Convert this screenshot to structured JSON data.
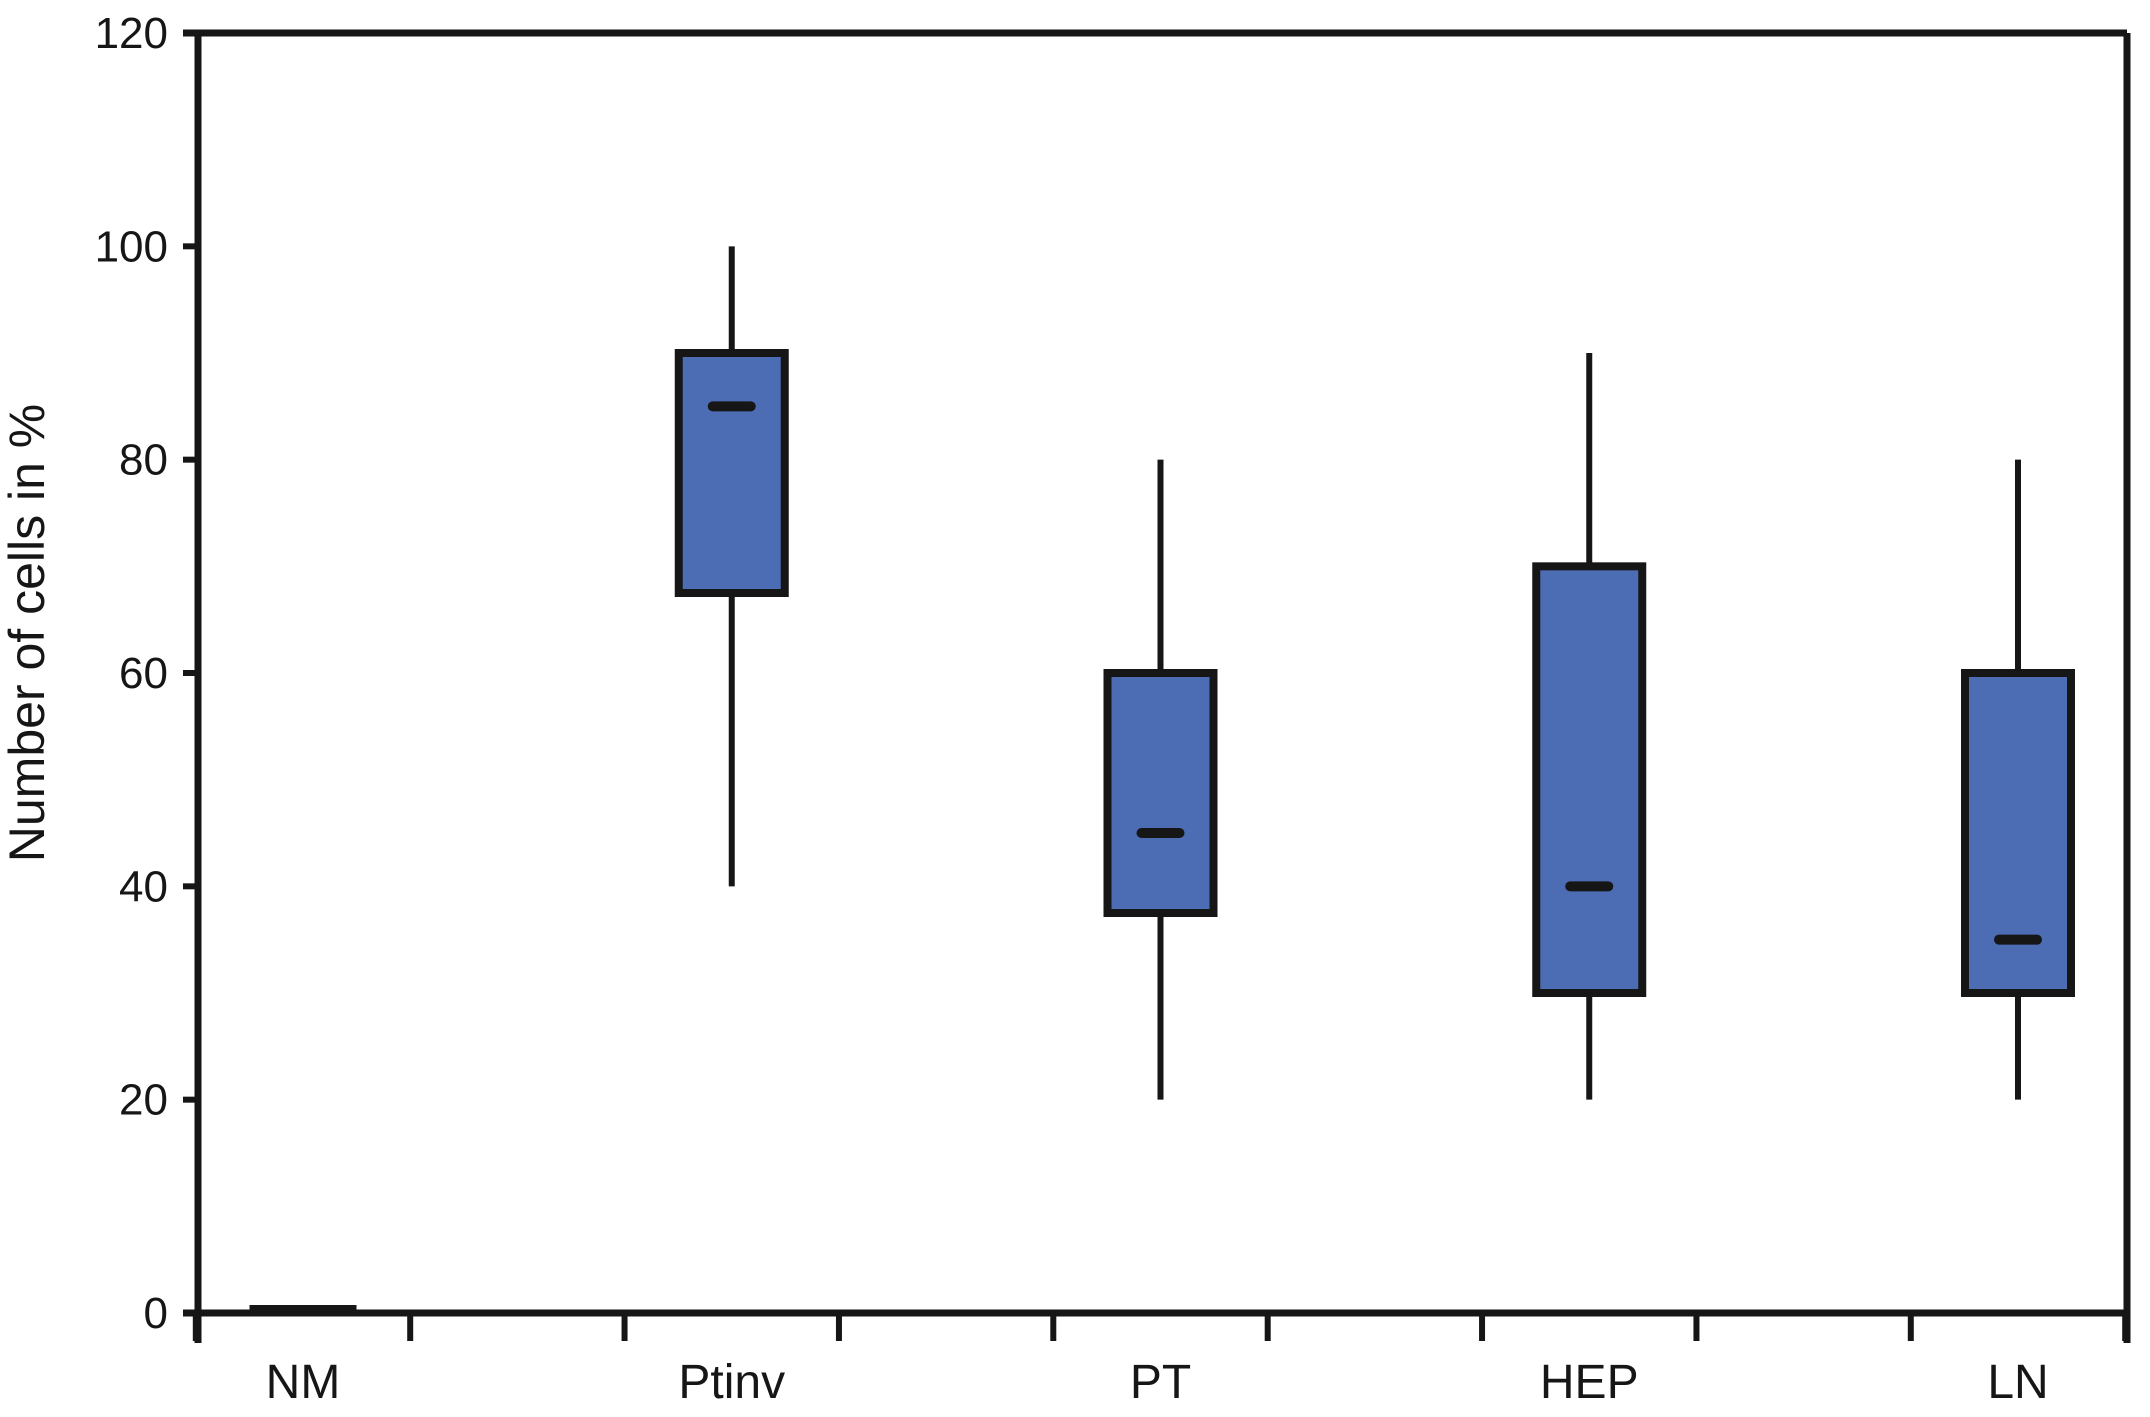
{
  "figure": {
    "title": "",
    "description": "Box plot of number of cells in percent across five tissue categories"
  },
  "chart_data": {
    "type": "boxplot",
    "title": "",
    "xlabel": "",
    "ylabel": "Number of cells in %",
    "ylim": [
      0,
      120
    ],
    "yticks": [
      0,
      20,
      40,
      60,
      80,
      100,
      120
    ],
    "grid": false,
    "legend": null,
    "categories": [
      "NM",
      "Ptinv",
      "PT",
      "HEP",
      "LN"
    ],
    "series": [
      {
        "category": "NM",
        "min": 0,
        "q1": 0,
        "median": 0,
        "q3": 0,
        "max": 0,
        "collapsed_at_zero": true
      },
      {
        "category": "Ptinv",
        "min": 40,
        "q1": 67.5,
        "median": 85,
        "q3": 90,
        "max": 100,
        "collapsed_at_zero": false
      },
      {
        "category": "PT",
        "min": 20,
        "q1": 37.5,
        "median": 45,
        "q3": 60,
        "max": 80,
        "collapsed_at_zero": false
      },
      {
        "category": "HEP",
        "min": 20,
        "q1": 30,
        "median": 40,
        "q3": 70,
        "max": 90,
        "collapsed_at_zero": false
      },
      {
        "category": "LN",
        "min": 20,
        "q1": 30,
        "median": 35,
        "q3": 60,
        "max": 80,
        "collapsed_at_zero": false
      }
    ],
    "colors": {
      "box_fill": "#4c6cb4",
      "line": "#161616",
      "background": "#ffffff"
    }
  }
}
